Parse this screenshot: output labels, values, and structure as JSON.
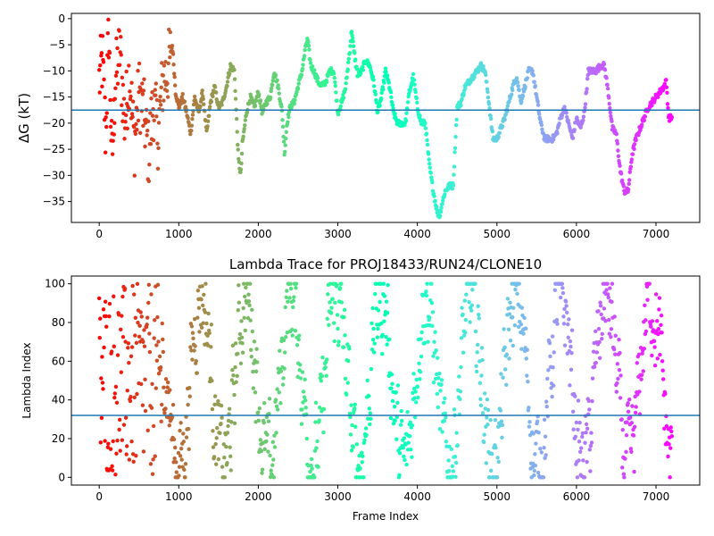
{
  "chart_data": [
    {
      "type": "scatter",
      "title": "",
      "xlabel": "",
      "ylabel": "ΔG (kT)",
      "ylabel_parts": {
        "symbol": "ΔG",
        "italic_part": "G",
        "unit": "(kT)"
      },
      "xlim": [
        -350,
        7550
      ],
      "ylim": [
        -39,
        1
      ],
      "x_ticks": [
        0,
        1000,
        2000,
        3000,
        4000,
        5000,
        6000,
        7000
      ],
      "y_ticks": [
        0,
        -5,
        -10,
        -15,
        -20,
        -25,
        -30,
        -35
      ],
      "hline": -17.5,
      "hline_color": "#1f77b4",
      "colormap": "rainbow",
      "color_by": "frame index (red at 0 → violet at end)",
      "x_max": 7200,
      "trace_keypoints": [
        [
          0,
          -12
        ],
        [
          40,
          -8
        ],
        [
          80,
          -22
        ],
        [
          120,
          -2
        ],
        [
          160,
          -28
        ],
        [
          200,
          -12
        ],
        [
          260,
          -6
        ],
        [
          320,
          -20
        ],
        [
          380,
          -10
        ],
        [
          440,
          -24
        ],
        [
          500,
          -14
        ],
        [
          560,
          -18
        ],
        [
          620,
          -26
        ],
        [
          680,
          -16
        ],
        [
          740,
          -22
        ],
        [
          800,
          -12
        ],
        [
          860,
          -10
        ],
        [
          920,
          -5
        ],
        [
          960,
          -14
        ],
        [
          1000,
          -17
        ],
        [
          1050,
          -15
        ],
        [
          1100,
          -18
        ],
        [
          1150,
          -22
        ],
        [
          1200,
          -15
        ],
        [
          1250,
          -18
        ],
        [
          1300,
          -14
        ],
        [
          1350,
          -22
        ],
        [
          1400,
          -16
        ],
        [
          1450,
          -13
        ],
        [
          1500,
          -17
        ],
        [
          1550,
          -16
        ],
        [
          1600,
          -13
        ],
        [
          1650,
          -9
        ],
        [
          1700,
          -10
        ],
        [
          1750,
          -27
        ],
        [
          1780,
          -30
        ],
        [
          1800,
          -24
        ],
        [
          1850,
          -18
        ],
        [
          1900,
          -15
        ],
        [
          1950,
          -17
        ],
        [
          2000,
          -14
        ],
        [
          2050,
          -18
        ],
        [
          2100,
          -16
        ],
        [
          2150,
          -15
        ],
        [
          2200,
          -10
        ],
        [
          2250,
          -13
        ],
        [
          2300,
          -18
        ],
        [
          2330,
          -26
        ],
        [
          2360,
          -20
        ],
        [
          2400,
          -17
        ],
        [
          2450,
          -16
        ],
        [
          2500,
          -13
        ],
        [
          2550,
          -10
        ],
        [
          2600,
          -5
        ],
        [
          2620,
          -4
        ],
        [
          2660,
          -9
        ],
        [
          2700,
          -10
        ],
        [
          2750,
          -12
        ],
        [
          2800,
          -13
        ],
        [
          2850,
          -12
        ],
        [
          2900,
          -10
        ],
        [
          2950,
          -10
        ],
        [
          3000,
          -18
        ],
        [
          3050,
          -16
        ],
        [
          3100,
          -13
        ],
        [
          3150,
          -6
        ],
        [
          3175,
          -2
        ],
        [
          3200,
          -6
        ],
        [
          3250,
          -11
        ],
        [
          3300,
          -10
        ],
        [
          3350,
          -8
        ],
        [
          3400,
          -9
        ],
        [
          3450,
          -12
        ],
        [
          3500,
          -18
        ],
        [
          3550,
          -15
        ],
        [
          3600,
          -10
        ],
        [
          3650,
          -13
        ],
        [
          3700,
          -18
        ],
        [
          3750,
          -20
        ],
        [
          3800,
          -20
        ],
        [
          3850,
          -20
        ],
        [
          3900,
          -14
        ],
        [
          3950,
          -11
        ],
        [
          4000,
          -17
        ],
        [
          4050,
          -20
        ],
        [
          4100,
          -20
        ],
        [
          4150,
          -28
        ],
        [
          4200,
          -33
        ],
        [
          4250,
          -37
        ],
        [
          4280,
          -38
        ],
        [
          4300,
          -36
        ],
        [
          4350,
          -33
        ],
        [
          4400,
          -32
        ],
        [
          4450,
          -32
        ],
        [
          4500,
          -17
        ],
        [
          4550,
          -16
        ],
        [
          4600,
          -13
        ],
        [
          4650,
          -12
        ],
        [
          4700,
          -11
        ],
        [
          4750,
          -10
        ],
        [
          4800,
          -9
        ],
        [
          4850,
          -10
        ],
        [
          4900,
          -16
        ],
        [
          4950,
          -23
        ],
        [
          5000,
          -23
        ],
        [
          5050,
          -21
        ],
        [
          5100,
          -19
        ],
        [
          5150,
          -16
        ],
        [
          5200,
          -13
        ],
        [
          5250,
          -11
        ],
        [
          5300,
          -16
        ],
        [
          5350,
          -13
        ],
        [
          5400,
          -10
        ],
        [
          5450,
          -10
        ],
        [
          5500,
          -15
        ],
        [
          5550,
          -20
        ],
        [
          5600,
          -23
        ],
        [
          5650,
          -23
        ],
        [
          5700,
          -23
        ],
        [
          5750,
          -22
        ],
        [
          5800,
          -19
        ],
        [
          5850,
          -17
        ],
        [
          5900,
          -20
        ],
        [
          5950,
          -23
        ],
        [
          6000,
          -19
        ],
        [
          6050,
          -21
        ],
        [
          6100,
          -18
        ],
        [
          6150,
          -10
        ],
        [
          6200,
          -10
        ],
        [
          6250,
          -10
        ],
        [
          6300,
          -9
        ],
        [
          6350,
          -9
        ],
        [
          6400,
          -14
        ],
        [
          6450,
          -21
        ],
        [
          6500,
          -22
        ],
        [
          6550,
          -29
        ],
        [
          6600,
          -33
        ],
        [
          6650,
          -33
        ],
        [
          6700,
          -26
        ],
        [
          6750,
          -23
        ],
        [
          6800,
          -21
        ],
        [
          6850,
          -19
        ],
        [
          6900,
          -17
        ],
        [
          6950,
          -16
        ],
        [
          7000,
          -15
        ],
        [
          7050,
          -14
        ],
        [
          7100,
          -13
        ],
        [
          7130,
          -12
        ],
        [
          7160,
          -19
        ],
        [
          7200,
          -19
        ]
      ]
    },
    {
      "type": "scatter",
      "title": "Lambda Trace for PROJ18433/RUN24/CLONE10",
      "xlabel": "Frame Index",
      "ylabel": "Lambda Index",
      "xlim": [
        -350,
        7550
      ],
      "ylim": [
        -4,
        104
      ],
      "x_ticks": [
        0,
        1000,
        2000,
        3000,
        4000,
        5000,
        6000,
        7000
      ],
      "y_ticks": [
        0,
        20,
        40,
        60,
        80,
        100
      ],
      "hline": 32,
      "hline_color": "#1f77b4",
      "colormap": "rainbow",
      "color_by": "frame index (red at 0 → violet at end)",
      "x_max": 7200,
      "lambda_range": [
        0,
        100
      ]
    }
  ]
}
